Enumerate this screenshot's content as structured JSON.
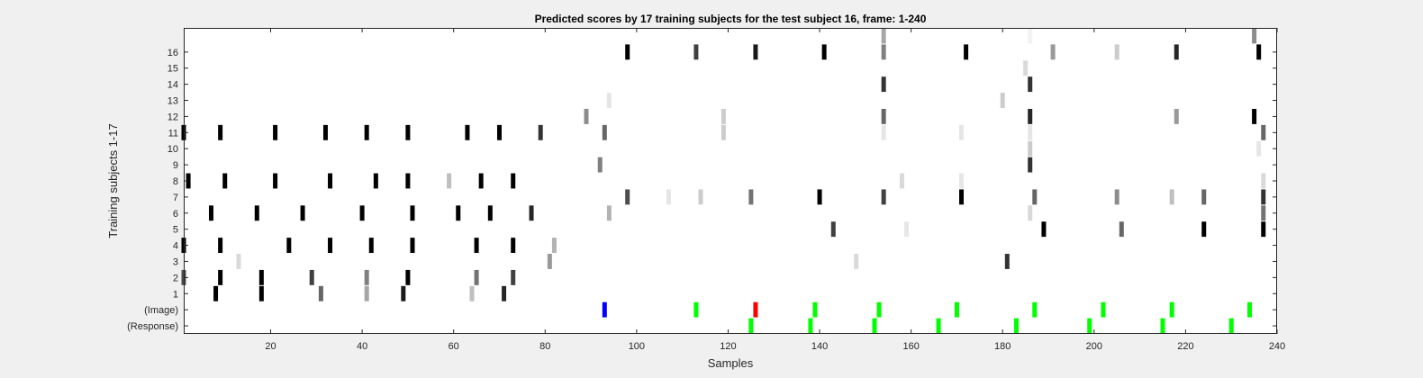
{
  "chart_data": {
    "type": "heatmap",
    "title": "Predicted scores by 17 training subjects for the test subject 16, frame: 1-240",
    "xlabel": "Samples",
    "ylabel": "Training subjects 1-17",
    "xlim": [
      1,
      240
    ],
    "xticks": [
      20,
      40,
      60,
      80,
      100,
      120,
      140,
      160,
      180,
      200,
      220,
      240
    ],
    "rows": [
      "(Response)",
      "(Image)",
      "1",
      "2",
      "3",
      "4",
      "5",
      "6",
      "7",
      "8",
      "9",
      "10",
      "11",
      "12",
      "13",
      "14",
      "15",
      "16",
      "17"
    ],
    "ytick_labels": [
      "(Response)",
      "(Image)",
      "1",
      "2",
      "3",
      "4",
      "5",
      "6",
      "7",
      "8",
      "9",
      "10",
      "11",
      "12",
      "13",
      "14",
      "15",
      "16"
    ],
    "colors": {
      "stimulus": "#00ff00",
      "target": "#ff0000",
      "current": "#0000ff"
    },
    "cells": [
      {
        "row": "(Response)",
        "x": 125,
        "color": "#00ff00"
      },
      {
        "row": "(Response)",
        "x": 138,
        "color": "#00ff00"
      },
      {
        "row": "(Response)",
        "x": 152,
        "color": "#00ff00"
      },
      {
        "row": "(Response)",
        "x": 166,
        "color": "#00ff00"
      },
      {
        "row": "(Response)",
        "x": 183,
        "color": "#00ff00"
      },
      {
        "row": "(Response)",
        "x": 199,
        "color": "#00ff00"
      },
      {
        "row": "(Response)",
        "x": 215,
        "color": "#00ff00"
      },
      {
        "row": "(Response)",
        "x": 230,
        "color": "#00ff00"
      },
      {
        "row": "(Image)",
        "x": 93,
        "color": "#0000ff"
      },
      {
        "row": "(Image)",
        "x": 113,
        "color": "#00ff00"
      },
      {
        "row": "(Image)",
        "x": 126,
        "color": "#ff0000"
      },
      {
        "row": "(Image)",
        "x": 139,
        "color": "#00ff00"
      },
      {
        "row": "(Image)",
        "x": 153,
        "color": "#00ff00"
      },
      {
        "row": "(Image)",
        "x": 170,
        "color": "#00ff00"
      },
      {
        "row": "(Image)",
        "x": 187,
        "color": "#00ff00"
      },
      {
        "row": "(Image)",
        "x": 202,
        "color": "#00ff00"
      },
      {
        "row": "(Image)",
        "x": 217,
        "color": "#00ff00"
      },
      {
        "row": "(Image)",
        "x": 234,
        "color": "#00ff00"
      },
      {
        "row": "1",
        "x": 8,
        "v": 1.0
      },
      {
        "row": "1",
        "x": 18,
        "v": 1.0
      },
      {
        "row": "1",
        "x": 31,
        "v": 0.6
      },
      {
        "row": "1",
        "x": 41,
        "v": 0.35
      },
      {
        "row": "1",
        "x": 49,
        "v": 0.9
      },
      {
        "row": "1",
        "x": 64,
        "v": 0.25
      },
      {
        "row": "1",
        "x": 71,
        "v": 0.85
      },
      {
        "row": "2",
        "x": 1,
        "v": 0.7
      },
      {
        "row": "2",
        "x": 9,
        "v": 1.0
      },
      {
        "row": "2",
        "x": 18,
        "v": 1.0
      },
      {
        "row": "2",
        "x": 29,
        "v": 0.75
      },
      {
        "row": "2",
        "x": 41,
        "v": 0.5
      },
      {
        "row": "2",
        "x": 50,
        "v": 1.0
      },
      {
        "row": "2",
        "x": 65,
        "v": 0.55
      },
      {
        "row": "2",
        "x": 73,
        "v": 0.75
      },
      {
        "row": "3",
        "x": 13,
        "v": 0.15
      },
      {
        "row": "3",
        "x": 81,
        "v": 0.4
      },
      {
        "row": "3",
        "x": 148,
        "v": 0.15
      },
      {
        "row": "3",
        "x": 181,
        "v": 0.8
      },
      {
        "row": "4",
        "x": 1,
        "v": 1.0
      },
      {
        "row": "4",
        "x": 9,
        "v": 1.0
      },
      {
        "row": "4",
        "x": 24,
        "v": 1.0
      },
      {
        "row": "4",
        "x": 33,
        "v": 1.0
      },
      {
        "row": "4",
        "x": 42,
        "v": 1.0
      },
      {
        "row": "4",
        "x": 51,
        "v": 1.0
      },
      {
        "row": "4",
        "x": 65,
        "v": 1.0
      },
      {
        "row": "4",
        "x": 73,
        "v": 1.0
      },
      {
        "row": "4",
        "x": 82,
        "v": 0.3
      },
      {
        "row": "5",
        "x": 143,
        "v": 0.75
      },
      {
        "row": "5",
        "x": 159,
        "v": 0.1
      },
      {
        "row": "5",
        "x": 189,
        "v": 1.0
      },
      {
        "row": "5",
        "x": 206,
        "v": 0.6
      },
      {
        "row": "5",
        "x": 224,
        "v": 1.0
      },
      {
        "row": "5",
        "x": 237,
        "v": 1.0
      },
      {
        "row": "6",
        "x": 7,
        "v": 1.0
      },
      {
        "row": "6",
        "x": 17,
        "v": 1.0
      },
      {
        "row": "6",
        "x": 27,
        "v": 1.0
      },
      {
        "row": "6",
        "x": 40,
        "v": 1.0
      },
      {
        "row": "6",
        "x": 51,
        "v": 1.0
      },
      {
        "row": "6",
        "x": 61,
        "v": 1.0
      },
      {
        "row": "6",
        "x": 68,
        "v": 1.0
      },
      {
        "row": "6",
        "x": 77,
        "v": 0.85
      },
      {
        "row": "6",
        "x": 94,
        "v": 0.3
      },
      {
        "row": "6",
        "x": 186,
        "v": 0.15
      },
      {
        "row": "6",
        "x": 237,
        "v": 0.55
      },
      {
        "row": "7",
        "x": 98,
        "v": 0.7
      },
      {
        "row": "7",
        "x": 107,
        "v": 0.1
      },
      {
        "row": "7",
        "x": 114,
        "v": 0.2
      },
      {
        "row": "7",
        "x": 125,
        "v": 0.55
      },
      {
        "row": "7",
        "x": 140,
        "v": 1.0
      },
      {
        "row": "7",
        "x": 154,
        "v": 0.75
      },
      {
        "row": "7",
        "x": 171,
        "v": 1.0
      },
      {
        "row": "7",
        "x": 187,
        "v": 0.6
      },
      {
        "row": "7",
        "x": 205,
        "v": 0.45
      },
      {
        "row": "7",
        "x": 217,
        "v": 0.25
      },
      {
        "row": "7",
        "x": 224,
        "v": 0.6
      },
      {
        "row": "7",
        "x": 237,
        "v": 0.8
      },
      {
        "row": "8",
        "x": 2,
        "v": 1.0
      },
      {
        "row": "8",
        "x": 10,
        "v": 1.0
      },
      {
        "row": "8",
        "x": 21,
        "v": 1.0
      },
      {
        "row": "8",
        "x": 33,
        "v": 1.0
      },
      {
        "row": "8",
        "x": 43,
        "v": 1.0
      },
      {
        "row": "8",
        "x": 50,
        "v": 1.0
      },
      {
        "row": "8",
        "x": 59,
        "v": 0.25
      },
      {
        "row": "8",
        "x": 66,
        "v": 1.0
      },
      {
        "row": "8",
        "x": 73,
        "v": 1.0
      },
      {
        "row": "8",
        "x": 158,
        "v": 0.15
      },
      {
        "row": "8",
        "x": 171,
        "v": 0.1
      },
      {
        "row": "8",
        "x": 237,
        "v": 0.15
      },
      {
        "row": "9",
        "x": 92,
        "v": 0.5
      },
      {
        "row": "9",
        "x": 186,
        "v": 0.8
      },
      {
        "row": "10",
        "x": 186,
        "v": 0.2
      },
      {
        "row": "10",
        "x": 236,
        "v": 0.1
      },
      {
        "row": "11",
        "x": 1,
        "v": 1.0
      },
      {
        "row": "11",
        "x": 9,
        "v": 1.0
      },
      {
        "row": "11",
        "x": 21,
        "v": 1.0
      },
      {
        "row": "11",
        "x": 32,
        "v": 1.0
      },
      {
        "row": "11",
        "x": 41,
        "v": 1.0
      },
      {
        "row": "11",
        "x": 50,
        "v": 1.0
      },
      {
        "row": "11",
        "x": 63,
        "v": 1.0
      },
      {
        "row": "11",
        "x": 70,
        "v": 1.0
      },
      {
        "row": "11",
        "x": 79,
        "v": 0.8
      },
      {
        "row": "11",
        "x": 93,
        "v": 0.6
      },
      {
        "row": "11",
        "x": 119,
        "v": 0.2
      },
      {
        "row": "11",
        "x": 154,
        "v": 0.1
      },
      {
        "row": "11",
        "x": 171,
        "v": 0.1
      },
      {
        "row": "11",
        "x": 186,
        "v": 0.1
      },
      {
        "row": "11",
        "x": 237,
        "v": 0.6
      },
      {
        "row": "12",
        "x": 89,
        "v": 0.45
      },
      {
        "row": "12",
        "x": 119,
        "v": 0.2
      },
      {
        "row": "12",
        "x": 154,
        "v": 0.6
      },
      {
        "row": "12",
        "x": 186,
        "v": 0.85
      },
      {
        "row": "12",
        "x": 218,
        "v": 0.4
      },
      {
        "row": "12",
        "x": 235,
        "v": 1.0
      },
      {
        "row": "13",
        "x": 94,
        "v": 0.1
      },
      {
        "row": "13",
        "x": 180,
        "v": 0.2
      },
      {
        "row": "14",
        "x": 154,
        "v": 0.8
      },
      {
        "row": "14",
        "x": 186,
        "v": 0.8
      },
      {
        "row": "15",
        "x": 185,
        "v": 0.15
      },
      {
        "row": "16",
        "x": 98,
        "v": 1.0
      },
      {
        "row": "16",
        "x": 113,
        "v": 0.75
      },
      {
        "row": "16",
        "x": 126,
        "v": 0.9
      },
      {
        "row": "16",
        "x": 141,
        "v": 1.0
      },
      {
        "row": "16",
        "x": 154,
        "v": 0.5
      },
      {
        "row": "16",
        "x": 172,
        "v": 1.0
      },
      {
        "row": "16",
        "x": 191,
        "v": 0.4
      },
      {
        "row": "16",
        "x": 205,
        "v": 0.2
      },
      {
        "row": "16",
        "x": 218,
        "v": 0.85
      },
      {
        "row": "16",
        "x": 236,
        "v": 1.0
      },
      {
        "row": "17",
        "x": 154,
        "v": 0.35
      },
      {
        "row": "17",
        "x": 186,
        "v": 0.05
      },
      {
        "row": "17",
        "x": 235,
        "v": 0.45
      }
    ]
  }
}
